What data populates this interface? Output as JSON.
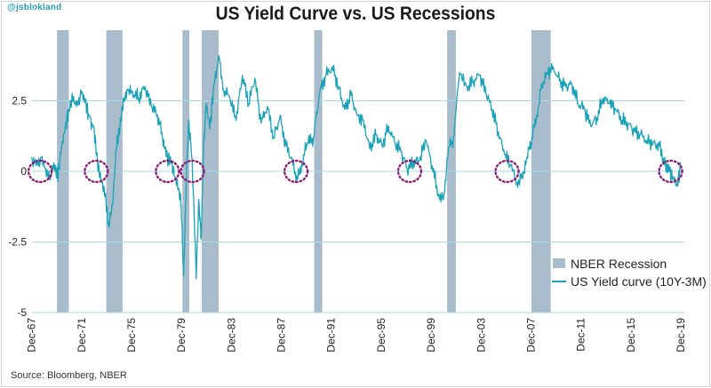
{
  "watermark": "@jsblokland",
  "source": "Source: Bloomberg, NBER",
  "chart_data": {
    "type": "line",
    "title": "US Yield Curve  vs. US Recessions",
    "xlabel": "",
    "ylabel": "",
    "ylim": [
      -5,
      5
    ],
    "xlim": [
      1967.95,
      2020.2
    ],
    "yticks": [
      {
        "value": 2.5,
        "label": "2.5"
      },
      {
        "value": 0,
        "label": "0"
      },
      {
        "value": -2.5,
        "label": "-2.5"
      },
      {
        "value": -5,
        "label": "-5"
      }
    ],
    "xticks": [
      {
        "value": 1967.92,
        "label": "Dec-67"
      },
      {
        "value": 1971.92,
        "label": "Dec-71"
      },
      {
        "value": 1975.92,
        "label": "Dec-75"
      },
      {
        "value": 1979.92,
        "label": "Dec-79"
      },
      {
        "value": 1983.92,
        "label": "Dec-83"
      },
      {
        "value": 1987.92,
        "label": "Dec-87"
      },
      {
        "value": 1991.92,
        "label": "Dec-91"
      },
      {
        "value": 1995.92,
        "label": "Dec-95"
      },
      {
        "value": 1999.92,
        "label": "Dec-99"
      },
      {
        "value": 2003.92,
        "label": "Dec-03"
      },
      {
        "value": 2007.92,
        "label": "Dec-07"
      },
      {
        "value": 2011.92,
        "label": "Dec-11"
      },
      {
        "value": 2015.92,
        "label": "Dec-15"
      },
      {
        "value": 2019.92,
        "label": "Dec-19"
      }
    ],
    "recessions": [
      {
        "start": 1969.95,
        "end": 1970.9
      },
      {
        "start": 1973.9,
        "end": 1975.2
      },
      {
        "start": 1980.0,
        "end": 1980.55
      },
      {
        "start": 1981.55,
        "end": 1982.9
      },
      {
        "start": 1990.55,
        "end": 1991.2
      },
      {
        "start": 2001.2,
        "end": 2001.9
      },
      {
        "start": 2007.95,
        "end": 2009.5
      }
    ],
    "inversion_markers": [
      {
        "x": 1968.6,
        "y": 0
      },
      {
        "x": 1973.1,
        "y": 0
      },
      {
        "x": 1978.8,
        "y": 0
      },
      {
        "x": 1980.8,
        "y": 0
      },
      {
        "x": 1989.1,
        "y": 0
      },
      {
        "x": 1998.2,
        "y": 0
      },
      {
        "x": 2006.0,
        "y": 0
      },
      {
        "x": 2019.1,
        "y": 0
      }
    ],
    "series": [
      {
        "name": "US Yield curve (10Y-3M)",
        "color": "#1aa3b8",
        "x": [
          1967.9,
          1968.3,
          1968.7,
          1969.0,
          1969.4,
          1969.7,
          1970.0,
          1970.3,
          1970.6,
          1970.9,
          1971.2,
          1971.5,
          1971.9,
          1972.2,
          1972.5,
          1972.9,
          1973.2,
          1973.5,
          1973.8,
          1974.1,
          1974.4,
          1974.7,
          1975.0,
          1975.3,
          1975.7,
          1976.0,
          1976.5,
          1977.0,
          1977.5,
          1978.0,
          1978.4,
          1978.8,
          1979.1,
          1979.4,
          1979.7,
          1979.9,
          1980.1,
          1980.3,
          1980.5,
          1980.7,
          1980.9,
          1981.1,
          1981.3,
          1981.5,
          1981.7,
          1981.9,
          1982.2,
          1982.5,
          1982.9,
          1983.3,
          1983.8,
          1984.3,
          1984.8,
          1985.3,
          1985.8,
          1986.3,
          1986.8,
          1987.3,
          1987.8,
          1988.3,
          1988.8,
          1989.2,
          1989.6,
          1990.0,
          1990.5,
          1991.0,
          1991.5,
          1992.0,
          1992.5,
          1993.0,
          1993.5,
          1994.0,
          1994.5,
          1995.0,
          1995.5,
          1996.0,
          1996.5,
          1997.0,
          1997.5,
          1998.0,
          1998.5,
          1999.0,
          1999.5,
          2000.0,
          2000.5,
          2000.9,
          2001.3,
          2001.7,
          2002.2,
          2002.8,
          2003.3,
          2003.8,
          2004.3,
          2004.8,
          2005.3,
          2005.8,
          2006.3,
          2006.8,
          2007.2,
          2007.6,
          2008.0,
          2008.4,
          2008.8,
          2009.2,
          2009.7,
          2010.2,
          2010.7,
          2011.2,
          2011.7,
          2012.2,
          2012.7,
          2013.2,
          2013.7,
          2014.2,
          2014.7,
          2015.2,
          2015.7,
          2016.2,
          2016.7,
          2017.2,
          2017.7,
          2018.2,
          2018.7,
          2019.0,
          2019.3,
          2019.6,
          2019.9
        ],
        "values": [
          0.5,
          0.2,
          0.5,
          0.1,
          -0.3,
          0.3,
          -0.2,
          0.8,
          1.5,
          2.2,
          2.6,
          2.3,
          2.8,
          2.5,
          2.0,
          1.6,
          0.3,
          -0.3,
          -0.8,
          -1.9,
          -1.2,
          0.8,
          1.6,
          2.6,
          2.9,
          2.8,
          2.6,
          3.0,
          2.3,
          2.0,
          1.2,
          0.5,
          0.3,
          -0.2,
          -0.6,
          -1.2,
          -3.7,
          -0.5,
          1.8,
          0.8,
          -0.9,
          -3.8,
          -1.0,
          -2.4,
          0.9,
          2.4,
          1.5,
          3.0,
          4.1,
          2.9,
          2.6,
          1.8,
          3.4,
          2.4,
          3.3,
          1.7,
          2.3,
          1.2,
          1.9,
          0.9,
          0.4,
          -0.3,
          0.3,
          1.0,
          1.2,
          2.8,
          3.4,
          3.7,
          3.0,
          2.2,
          2.7,
          2.0,
          1.8,
          0.8,
          1.3,
          0.9,
          1.6,
          1.0,
          0.7,
          0.1,
          0.3,
          0.4,
          1.1,
          0.2,
          -0.8,
          -1.0,
          0.8,
          1.2,
          3.5,
          3.0,
          3.2,
          3.4,
          2.8,
          2.2,
          1.4,
          0.6,
          0.2,
          -0.4,
          -0.2,
          0.5,
          1.2,
          2.0,
          3.1,
          3.5,
          3.7,
          3.2,
          3.0,
          3.1,
          2.4,
          2.2,
          1.6,
          1.9,
          2.6,
          2.4,
          2.2,
          1.8,
          1.7,
          1.4,
          1.3,
          1.1,
          1.0,
          0.9,
          0.2,
          0.0,
          -0.2,
          -0.5,
          0.1
        ]
      }
    ],
    "legend": {
      "position": "bottom-right",
      "entries": [
        {
          "label": "NBER Recession",
          "kind": "bar",
          "color": "#a9bccb"
        },
        {
          "label": "US Yield curve (10Y-3M)",
          "kind": "line",
          "color": "#1aa3b8"
        }
      ]
    },
    "colors": {
      "grid": "#a7d9e1",
      "recession": "#a9bccb",
      "marker": "#8a1f7a"
    }
  }
}
